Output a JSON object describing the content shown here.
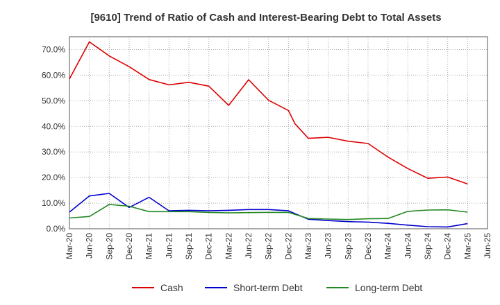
{
  "chart_data": {
    "type": "line",
    "title": "[9610]  Trend of Ratio of Cash and Interest-Bearing Debt to Total Assets",
    "xlabel": "",
    "ylabel": "",
    "ylim": [
      0,
      75
    ],
    "yticks": [
      0,
      10,
      20,
      30,
      40,
      50,
      60,
      70
    ],
    "ytick_labels": [
      "0.0%",
      "10.0%",
      "20.0%",
      "30.0%",
      "40.0%",
      "50.0%",
      "60.0%",
      "70.0%"
    ],
    "x_tick_labels": [
      "Mar-20",
      "Jun-20",
      "Sep-20",
      "Dec-20",
      "Mar-21",
      "Jun-21",
      "Sep-21",
      "Dec-21",
      "Mar-22",
      "Jun-22",
      "Sep-22",
      "Dec-22",
      "Mar-23",
      "Jun-23",
      "Sep-23",
      "Dec-23",
      "Mar-24",
      "Jun-24",
      "Sep-24",
      "Dec-24",
      "Mar-25",
      "Jun-25"
    ],
    "x_range": [
      0,
      21
    ],
    "grid": true,
    "legend_position": "bottom",
    "series": [
      {
        "name": "Cash",
        "color": "#dd0000",
        "x": [
          0,
          1,
          2,
          3,
          4,
          5,
          6,
          7,
          8,
          9,
          10,
          11,
          11.33,
          12,
          13,
          14,
          15,
          16,
          17,
          18,
          19,
          20
        ],
        "values": [
          58.5,
          73.0,
          67.5,
          63.3,
          58.3,
          56.2,
          57.2,
          55.7,
          48.2,
          58.2,
          50.2,
          46.2,
          41.0,
          35.3,
          35.7,
          34.2,
          33.3,
          28.0,
          23.5,
          19.7,
          20.2,
          17.5
        ]
      },
      {
        "name": "Short-term Debt",
        "color": "#0000cc",
        "x": [
          0,
          1,
          2,
          3,
          4,
          5,
          6,
          7,
          8,
          9,
          10,
          11,
          12,
          13,
          14,
          15,
          16,
          17,
          18,
          19,
          20
        ],
        "values": [
          6.5,
          12.8,
          13.8,
          8.3,
          12.3,
          7.0,
          7.2,
          7.0,
          7.2,
          7.5,
          7.5,
          7.0,
          3.7,
          3.2,
          2.8,
          2.6,
          2.1,
          1.4,
          0.8,
          0.7,
          2.0
        ]
      },
      {
        "name": "Long-term Debt",
        "color": "#228822",
        "x": [
          0,
          1,
          2,
          3,
          4,
          5,
          6,
          7,
          8,
          9,
          10,
          11,
          12,
          13,
          14,
          15,
          16,
          17,
          18,
          19,
          20
        ],
        "values": [
          4.2,
          4.8,
          9.5,
          8.8,
          6.7,
          6.7,
          6.7,
          6.4,
          6.2,
          6.3,
          6.4,
          6.4,
          4.0,
          3.8,
          3.6,
          3.9,
          4.0,
          6.8,
          7.3,
          7.4,
          6.5
        ]
      }
    ]
  }
}
